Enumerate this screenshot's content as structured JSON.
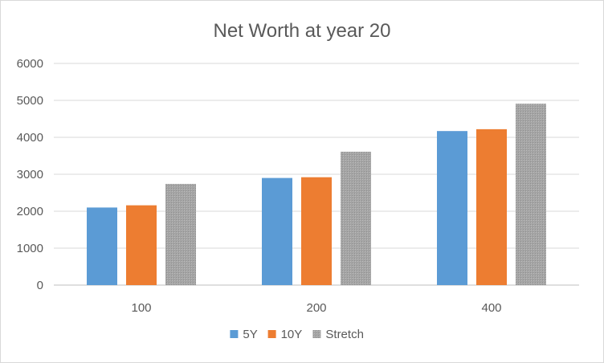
{
  "chart_data": {
    "type": "bar",
    "title": "Net Worth at year 20",
    "xlabel": "",
    "ylabel": "",
    "categories": [
      "100",
      "200",
      "400"
    ],
    "series": [
      {
        "name": "5Y",
        "color": "#5b9bd5",
        "values": [
          2100,
          2900,
          4170
        ]
      },
      {
        "name": "10Y",
        "color": "#ed7d31",
        "values": [
          2160,
          2920,
          4220
        ]
      },
      {
        "name": "Stretch",
        "color": "#a5a5a5",
        "values": [
          2740,
          3610,
          4910
        ]
      }
    ],
    "ylim": [
      0,
      6000
    ],
    "yticks": [
      0,
      1000,
      2000,
      3000,
      4000,
      5000,
      6000
    ],
    "grid": true,
    "legend_position": "bottom"
  }
}
